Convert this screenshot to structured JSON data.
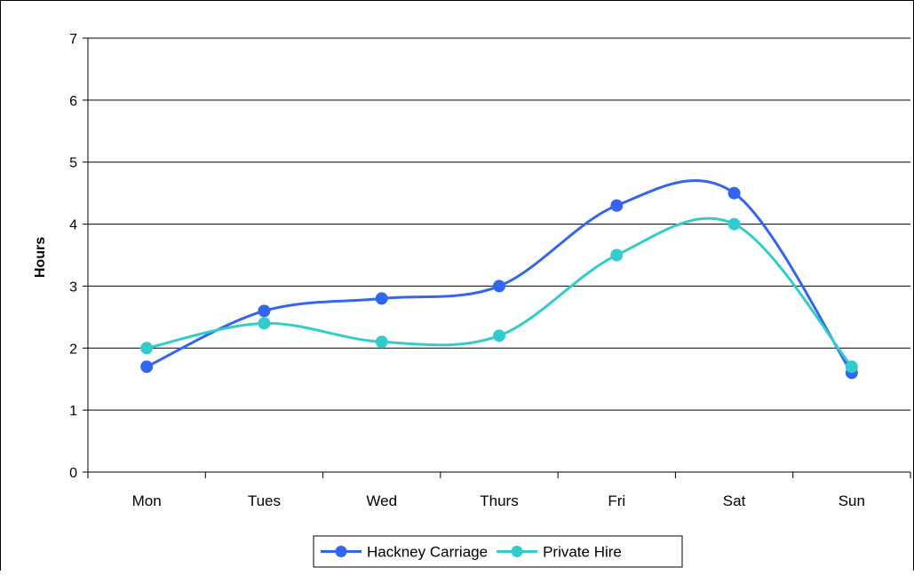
{
  "chart_data": {
    "type": "line",
    "categories": [
      "Mon",
      "Tues",
      "Wed",
      "Thurs",
      "Fri",
      "Sat",
      "Sun"
    ],
    "series": [
      {
        "name": "Hackney Carriage",
        "color": "#3366ee",
        "values": [
          1.7,
          2.6,
          2.8,
          3.0,
          4.3,
          4.5,
          1.6
        ]
      },
      {
        "name": "Private Hire",
        "color": "#33cccc",
        "values": [
          2.0,
          2.4,
          2.1,
          2.2,
          3.5,
          4.0,
          1.7
        ]
      }
    ],
    "ylabel": "Hours",
    "xlabel": "",
    "title": "",
    "ylim": [
      0,
      7
    ],
    "yticks": [
      0,
      1,
      2,
      3,
      4,
      5,
      6,
      7
    ],
    "grid": true,
    "smooth": true,
    "legend_position": "bottom"
  }
}
